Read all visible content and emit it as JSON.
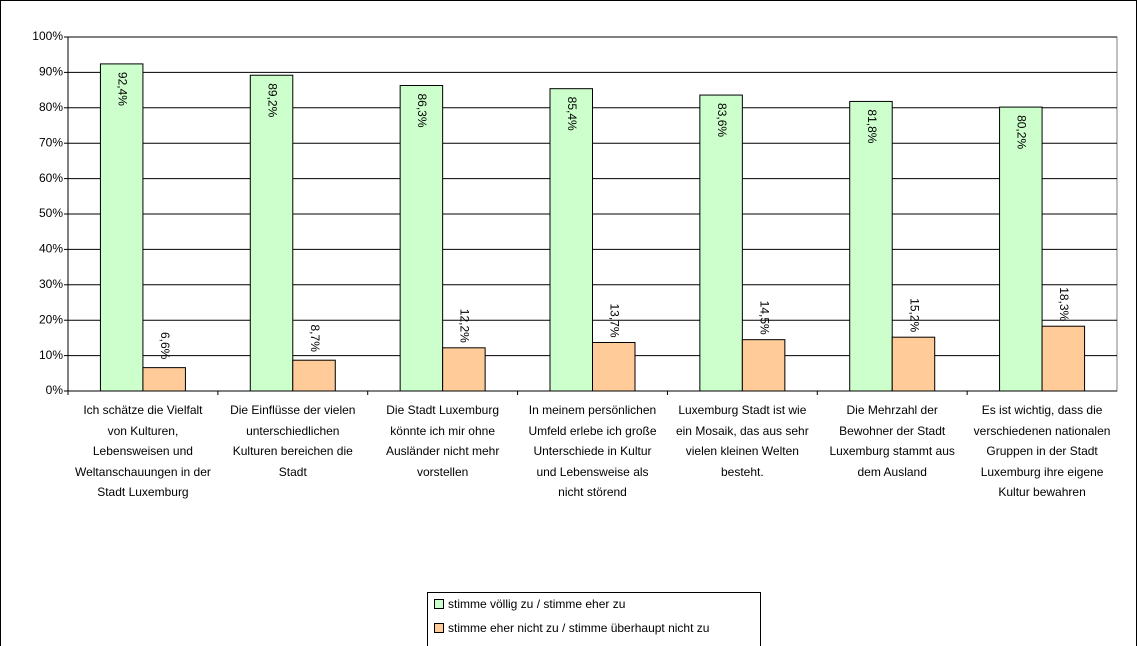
{
  "chart_data": {
    "type": "bar",
    "categories": [
      "Ich schätze die Vielfalt von Kulturen, Lebensweisen und Weltanschauungen in der Stadt Luxemburg",
      "Die Einflüsse der vielen unterschiedlichen Kulturen bereichen die Stadt",
      "Die Stadt Luxemburg könnte ich mir ohne Ausländer nicht mehr vorstellen",
      "In meinem persönlichen Umfeld erlebe ich große Unterschiede in Kultur und Lebensweise als nicht störend",
      "Luxemburg Stadt ist wie ein Mosaik, das aus sehr vielen kleinen Welten besteht.",
      "Die Mehrzahl der Bewohner der Stadt Luxemburg stammt aus dem Ausland",
      "Es ist wichtig, dass die verschiedenen nationalen Gruppen in der Stadt Luxemburg ihre eigene Kultur bewahren"
    ],
    "series": [
      {
        "name": "stimme völlig zu / stimme eher zu",
        "color": "#ccffcc",
        "values": [
          92.4,
          89.2,
          86.3,
          85.4,
          83.6,
          81.8,
          80.2
        ],
        "value_labels": [
          "92,4%",
          "89,2%",
          "86,3%",
          "85,4%",
          "83,6%",
          "81,8%",
          "80,2%"
        ]
      },
      {
        "name": "stimme eher nicht zu / stimme überhaupt nicht zu",
        "color": "#ffcc99",
        "values": [
          6.6,
          8.7,
          12.2,
          13.7,
          14.5,
          15.2,
          18.3
        ],
        "value_labels": [
          "6,6%",
          "8,7%",
          "12,2%",
          "13,7%",
          "14,5%",
          "15,2%",
          "18,3%"
        ]
      }
    ],
    "ylim": [
      0,
      100
    ],
    "yticks": [
      {
        "value": 0,
        "label": "0%"
      },
      {
        "value": 10,
        "label": "10%"
      },
      {
        "value": 20,
        "label": "20%"
      },
      {
        "value": 30,
        "label": "30%"
      },
      {
        "value": 40,
        "label": "40%"
      },
      {
        "value": 50,
        "label": "50%"
      },
      {
        "value": 60,
        "label": "60%"
      },
      {
        "value": 70,
        "label": "70%"
      },
      {
        "value": 80,
        "label": "80%"
      },
      {
        "value": 90,
        "label": "90%"
      },
      {
        "value": 100,
        "label": "100%"
      }
    ],
    "grid": true
  }
}
